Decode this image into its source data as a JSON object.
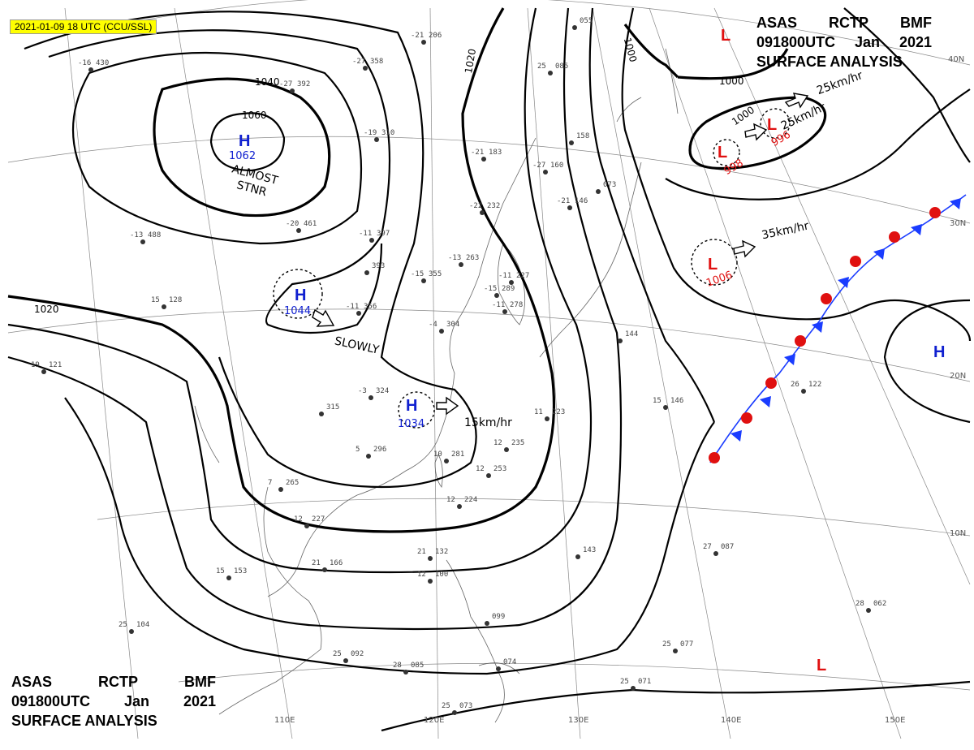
{
  "stamp": "2021-01-09 18 UTC (CCU/SSL)",
  "header_top": {
    "line1": [
      "ASAS",
      "RCTP",
      "BMF"
    ],
    "line2": [
      "091800UTC",
      "Jan",
      "2021"
    ],
    "line3": "SURFACE ANALYSIS"
  },
  "header_bottom": {
    "line1": [
      "ASAS",
      "RCTP",
      "BMF"
    ],
    "line2": [
      "091800UTC",
      "Jan",
      "2021"
    ],
    "line3": "SURFACE ANALYSIS"
  },
  "isobars": [
    {
      "value": "1060"
    },
    {
      "value": "1040"
    },
    {
      "value": "1020"
    },
    {
      "value": "1020"
    },
    {
      "value": "1000"
    },
    {
      "value": "1000"
    },
    {
      "value": "1000"
    }
  ],
  "pressure_centers": [
    {
      "type": "H",
      "value": "1062"
    },
    {
      "type": "H",
      "value": "1044"
    },
    {
      "type": "H",
      "value": "1034"
    },
    {
      "type": "H",
      "value": ""
    },
    {
      "type": "L",
      "value": ""
    },
    {
      "type": "L",
      "value": "996"
    },
    {
      "type": "L",
      "value": "998"
    },
    {
      "type": "L",
      "value": "1006"
    },
    {
      "type": "L",
      "value": ""
    }
  ],
  "annotations": {
    "almost_1": "ALMOST",
    "almost_2": "STNR",
    "slowly": "SLOWLY",
    "speed_1034": "15km/hr",
    "speed_1006": "35km/hr",
    "speed_996": "25km/hr",
    "speed_ne": "25km/hr"
  },
  "lat_labels": [
    "40N",
    "30N",
    "20N",
    "10N"
  ],
  "lon_labels": [
    "110E",
    "120E",
    "130E",
    "140E",
    "150E"
  ],
  "stations": [
    {
      "t": "-21",
      "p": "206"
    },
    {
      "t": "-27",
      "p": "358"
    },
    {
      "t": "-27",
      "p": "392"
    },
    {
      "t": "-16",
      "p": "430"
    },
    {
      "t": "-19",
      "p": "310"
    },
    {
      "t": "-21",
      "p": "183"
    },
    {
      "t": "-27",
      "p": "160"
    },
    {
      "t": "-22",
      "p": "232"
    },
    {
      "t": "-20",
      "p": "461"
    },
    {
      "t": "-13",
      "p": "488"
    },
    {
      "t": "-11",
      "p": "397"
    },
    {
      "t": "-13",
      "p": "263"
    },
    {
      "t": "-15",
      "p": "355"
    },
    {
      "t": "",
      "p": "393"
    },
    {
      "t": "-11",
      "p": "227"
    },
    {
      "t": "-15",
      "p": "289"
    },
    {
      "t": "-11",
      "p": "278"
    },
    {
      "t": "-4",
      "p": "304"
    },
    {
      "t": "-11",
      "p": "356"
    },
    {
      "t": "15",
      "p": "128"
    },
    {
      "t": "19",
      "p": "121"
    },
    {
      "t": "-3",
      "p": "324"
    },
    {
      "t": "",
      "p": "315"
    },
    {
      "t": "5",
      "p": "296"
    },
    {
      "t": "10",
      "p": "281"
    },
    {
      "t": "12",
      "p": "235"
    },
    {
      "t": "11",
      "p": "223"
    },
    {
      "t": "12",
      "p": "253"
    },
    {
      "t": "12",
      "p": "224"
    },
    {
      "t": "7",
      "p": "265"
    },
    {
      "t": "12",
      "p": "227"
    },
    {
      "t": "21",
      "p": "166"
    },
    {
      "t": "15",
      "p": "153"
    },
    {
      "t": "25",
      "p": "104"
    },
    {
      "t": "21",
      "p": "132"
    },
    {
      "t": "12",
      "p": "100"
    },
    {
      "t": "",
      "p": "143"
    },
    {
      "t": "",
      "p": "099"
    },
    {
      "t": "25",
      "p": "092"
    },
    {
      "t": "28",
      "p": "085"
    },
    {
      "t": "",
      "p": "074"
    },
    {
      "t": "25",
      "p": "073"
    },
    {
      "t": "25",
      "p": "071"
    },
    {
      "t": "25",
      "p": "077"
    },
    {
      "t": "27",
      "p": "087"
    },
    {
      "t": "28",
      "p": "062"
    },
    {
      "t": "26",
      "p": "122"
    },
    {
      "t": "15",
      "p": "146"
    },
    {
      "t": "",
      "p": "144"
    },
    {
      "t": "25",
      "p": "085"
    },
    {
      "t": "",
      "p": "158"
    },
    {
      "t": "-21",
      "p": "146"
    },
    {
      "t": "",
      "p": "073"
    },
    {
      "t": "",
      "p": "055"
    }
  ],
  "colors": {
    "high": "#1020d0",
    "low": "#e01010",
    "cold_front": "#1a3cff",
    "warm_front": "#e01010",
    "stamp_bg": "#ffff00"
  }
}
